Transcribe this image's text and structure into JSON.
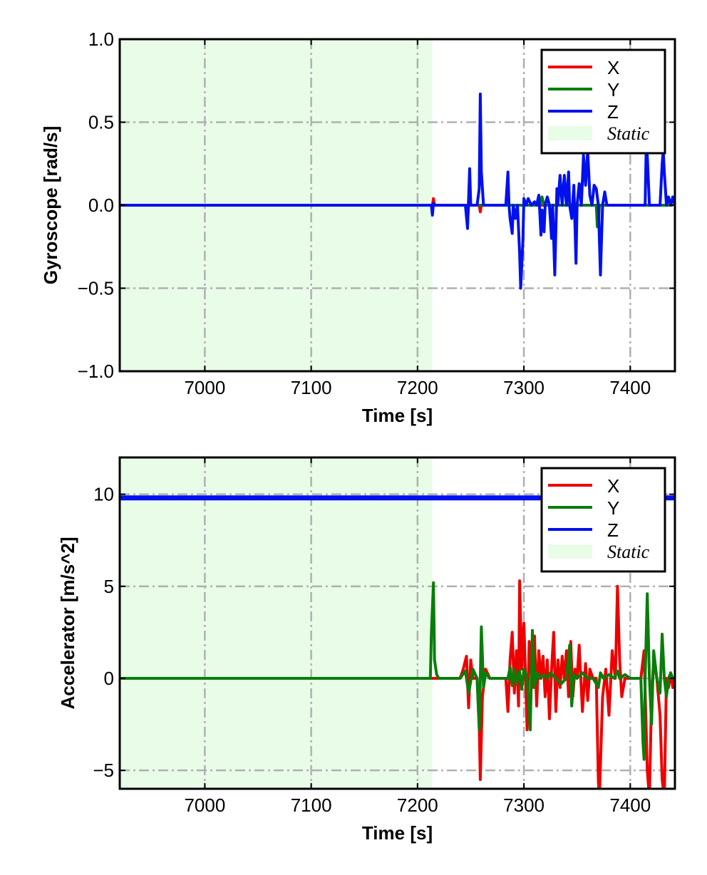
{
  "chart_data": [
    {
      "type": "line",
      "xlabel": "Time [s]",
      "ylabel": "Gyroscope [rad/s]",
      "xlim": [
        6920,
        7442
      ],
      "ylim": [
        -1.0,
        1.0
      ],
      "xticks": [
        7000,
        7100,
        7200,
        7300,
        7400
      ],
      "xtick_labels": [
        "7000",
        "7100",
        "7200",
        "7300",
        "7400"
      ],
      "yticks": [
        1.0,
        0.5,
        0.0,
        -0.5,
        -1.0
      ],
      "ytick_labels": [
        "1.0",
        "0.5",
        "0.0",
        "−0.5",
        "−1.0"
      ],
      "grid": true,
      "legend_position": "top-right",
      "static_region": {
        "label": "Static",
        "x_start": 6920,
        "x_end": 7214,
        "color": "#e8fce8"
      },
      "series": [
        {
          "name": "X",
          "color": "#ee0000",
          "x": [
            6920,
            7214,
            7215,
            7216,
            7246,
            7247,
            7248,
            7258,
            7259,
            7260,
            7300,
            7440
          ],
          "y": [
            0.0,
            0.0,
            0.04,
            0.0,
            0.0,
            -0.1,
            0.0,
            0.0,
            -0.04,
            0.0,
            0.0,
            0.0
          ]
        },
        {
          "name": "Y",
          "color": "#0a7d0a",
          "x": [
            6920,
            7315,
            7317,
            7319,
            7368,
            7369,
            7370,
            7371,
            7440
          ],
          "y": [
            0.0,
            0.0,
            0.05,
            0.0,
            0.0,
            -0.13,
            -0.13,
            0.0,
            0.0
          ]
        },
        {
          "name": "Z",
          "color": "#0010ee",
          "x": [
            6920,
            7213,
            7214,
            7215,
            7216,
            7245,
            7247,
            7249,
            7250,
            7256,
            7258,
            7259,
            7260,
            7262,
            7283,
            7285,
            7286,
            7287,
            7289,
            7290,
            7292,
            7294,
            7296,
            7297,
            7299,
            7300,
            7302,
            7304,
            7307,
            7310,
            7312,
            7314,
            7315,
            7316,
            7317,
            7319,
            7320,
            7322,
            7324,
            7326,
            7327,
            7329,
            7331,
            7332,
            7334,
            7336,
            7338,
            7340,
            7342,
            7343,
            7345,
            7347,
            7349,
            7350,
            7352,
            7354,
            7356,
            7358,
            7360,
            7362,
            7364,
            7366,
            7368,
            7370,
            7372,
            7374,
            7376,
            7378,
            7380,
            7383,
            7386,
            7387,
            7389,
            7391,
            7393,
            7395,
            7400,
            7405,
            7410,
            7412,
            7414,
            7415,
            7416,
            7418,
            7420,
            7425,
            7428,
            7430,
            7431,
            7432,
            7434,
            7436,
            7438,
            7440,
            7442
          ],
          "y": [
            0.0,
            0.0,
            -0.06,
            0.01,
            0.0,
            0.0,
            -0.14,
            0.22,
            0.0,
            0.0,
            0.1,
            0.67,
            0.2,
            0.0,
            0.0,
            0.2,
            0.0,
            -0.08,
            -0.17,
            0.0,
            -0.08,
            0.0,
            -0.29,
            -0.5,
            -0.22,
            0.04,
            0.0,
            0.04,
            0.0,
            0.02,
            0.0,
            0.06,
            -0.05,
            -0.18,
            -0.03,
            -0.16,
            0.0,
            0.05,
            0.0,
            -0.2,
            0.0,
            -0.42,
            0.1,
            0.0,
            0.18,
            0.0,
            0.18,
            0.0,
            0.2,
            0.0,
            -0.08,
            0.12,
            -0.35,
            0.0,
            0.13,
            0.0,
            0.3,
            0.12,
            0.33,
            0.06,
            0.0,
            0.12,
            0.1,
            0.0,
            -0.42,
            0.0,
            0.08,
            0.0,
            0.0,
            0.0,
            0.0,
            0.0,
            0.0,
            0.0,
            0.0,
            0.0,
            0.0,
            0.0,
            0.0,
            0.0,
            0.0,
            0.35,
            0.3,
            0.0,
            0.0,
            0.0,
            0.0,
            0.25,
            0.33,
            0.2,
            0.0,
            0.05,
            0.0,
            0.05,
            0.0
          ]
        }
      ]
    },
    {
      "type": "line",
      "xlabel": "Time [s]",
      "ylabel": "Accelerator [m/s^2]",
      "xlim": [
        6920,
        7442
      ],
      "ylim": [
        -6.0,
        12.0
      ],
      "xticks": [
        7000,
        7100,
        7200,
        7300,
        7400
      ],
      "xtick_labels": [
        "7000",
        "7100",
        "7200",
        "7300",
        "7400"
      ],
      "yticks": [
        10,
        5,
        0,
        -5
      ],
      "ytick_labels": [
        "10",
        "5",
        "0",
        "−5"
      ],
      "grid": true,
      "legend_position": "top-right",
      "static_region": {
        "label": "Static",
        "x_start": 6920,
        "x_end": 7214,
        "color": "#e8fce8"
      },
      "series": [
        {
          "name": "X",
          "color": "#ee0000",
          "x": [
            6920,
            7240,
            7243,
            7246,
            7248,
            7250,
            7252,
            7256,
            7258,
            7259,
            7261,
            7264,
            7268,
            7283,
            7285,
            7287,
            7289,
            7291,
            7293,
            7295,
            7296,
            7298,
            7300,
            7303,
            7305,
            7308,
            7310,
            7312,
            7314,
            7316,
            7318,
            7320,
            7322,
            7324,
            7326,
            7328,
            7330,
            7332,
            7334,
            7336,
            7338,
            7340,
            7342,
            7344,
            7346,
            7348,
            7350,
            7352,
            7355,
            7358,
            7360,
            7362,
            7365,
            7368,
            7370,
            7371,
            7374,
            7377,
            7380,
            7383,
            7386,
            7388,
            7390,
            7392,
            7395,
            7400,
            7405,
            7410,
            7413,
            7416,
            7418,
            7420,
            7422,
            7425,
            7428,
            7430,
            7432,
            7434,
            7436,
            7438,
            7440,
            7442
          ],
          "y": [
            0.0,
            0.0,
            0.5,
            1.2,
            -1.6,
            1.0,
            0.0,
            0.0,
            -2.5,
            -5.5,
            -1.0,
            0.5,
            0.0,
            0.0,
            -1.8,
            1.0,
            2.5,
            -0.8,
            1.5,
            -1.5,
            5.3,
            0.5,
            3.0,
            -2.8,
            2.0,
            -0.5,
            2.3,
            -1.5,
            1.5,
            0.0,
            1.2,
            -1.0,
            1.0,
            -2.2,
            0.5,
            2.5,
            -1.8,
            1.0,
            -0.5,
            1.2,
            0.0,
            1.5,
            -1.0,
            2.0,
            -1.0,
            0.5,
            0.0,
            1.8,
            -1.8,
            0.8,
            -1.2,
            0.5,
            0.0,
            0.0,
            -5.6,
            -6.5,
            -1.0,
            0.5,
            -2.0,
            1.5,
            0.0,
            5.0,
            1.0,
            -1.0,
            0.0,
            0.0,
            0.0,
            0.0,
            1.5,
            -5.0,
            -6.5,
            -1.0,
            1.0,
            0.0,
            -2.0,
            -5.5,
            -6.5,
            0.0,
            -0.5,
            0.3,
            -0.5,
            0.0
          ]
        },
        {
          "name": "Y",
          "color": "#0a7d0a",
          "x": [
            6920,
            7212,
            7213,
            7215,
            7216,
            7218,
            7220,
            7240,
            7245,
            7248,
            7252,
            7256,
            7258,
            7260,
            7262,
            7264,
            7268,
            7285,
            7287,
            7289,
            7291,
            7293,
            7296,
            7298,
            7300,
            7303,
            7306,
            7308,
            7310,
            7312,
            7315,
            7318,
            7322,
            7325,
            7330,
            7335,
            7340,
            7343,
            7345,
            7347,
            7350,
            7355,
            7360,
            7365,
            7370,
            7372,
            7375,
            7380,
            7385,
            7388,
            7390,
            7395,
            7400,
            7405,
            7410,
            7412,
            7413,
            7414,
            7416,
            7418,
            7420,
            7422,
            7425,
            7428,
            7430,
            7432,
            7434,
            7436,
            7438,
            7440,
            7442
          ],
          "y": [
            0.0,
            0.0,
            2.5,
            5.2,
            1.0,
            0.2,
            0.0,
            0.0,
            0.4,
            -0.8,
            0.5,
            0.0,
            -2.8,
            2.8,
            -0.5,
            0.3,
            0.0,
            0.0,
            0.6,
            -0.4,
            0.5,
            -0.3,
            0.4,
            -0.6,
            0.5,
            0.0,
            -2.8,
            2.6,
            -0.5,
            0.3,
            0.0,
            0.2,
            0.0,
            0.3,
            0.0,
            -0.3,
            0.0,
            1.8,
            -1.5,
            0.2,
            0.0,
            0.3,
            0.0,
            0.0,
            -0.5,
            0.3,
            0.0,
            0.2,
            0.0,
            0.4,
            0.0,
            0.2,
            0.0,
            0.0,
            0.0,
            -3.5,
            -4.4,
            0.0,
            4.6,
            0.0,
            -2.5,
            1.5,
            0.0,
            -0.8,
            2.4,
            0.0,
            -1.0,
            0.0,
            0.3,
            0.0,
            0.0
          ]
        },
        {
          "name": "Z",
          "color": "#0010ee",
          "x": [
            6920,
            7000,
            7100,
            7200,
            7300,
            7400,
            7442
          ],
          "y": [
            9.8,
            9.8,
            9.8,
            9.8,
            9.8,
            9.8,
            9.8
          ]
        }
      ]
    }
  ]
}
